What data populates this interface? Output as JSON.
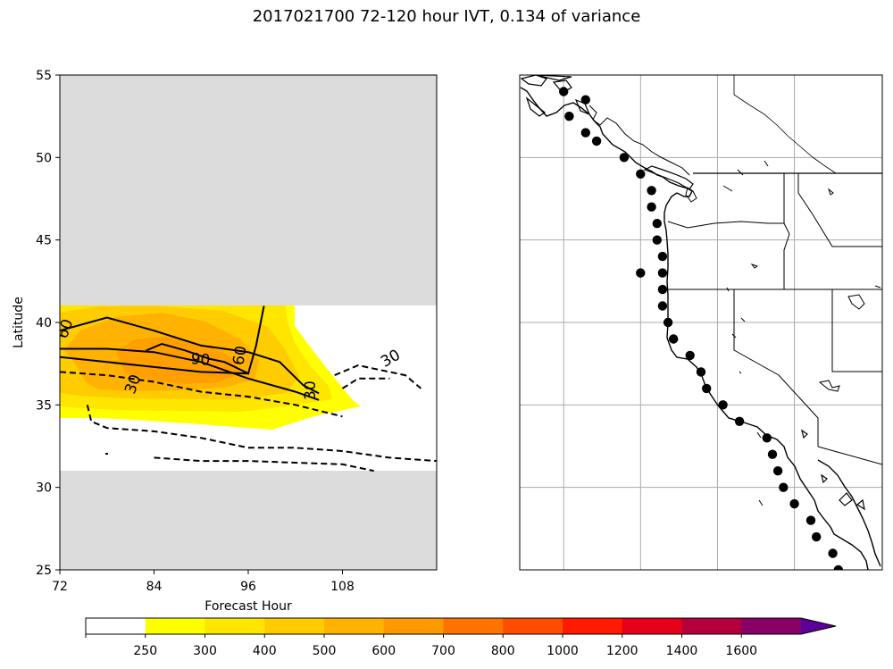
{
  "title": "2017021700 72-120 hour IVT, 0.134 of variance",
  "chart_data": [
    {
      "type": "contour",
      "xlabel": "Forecast Hour",
      "ylabel": "Latitude",
      "xlim": [
        72,
        120
      ],
      "ylim": [
        25,
        55
      ],
      "xticks": [
        72,
        84,
        96,
        108
      ],
      "yticks": [
        25,
        30,
        35,
        40,
        45,
        50,
        55
      ],
      "valid_lat_range": [
        31,
        41
      ],
      "masked_color": "#dcdcdc",
      "filled_levels": [
        250,
        300,
        400,
        500,
        600
      ],
      "contour_labels": [
        "60",
        "90",
        "60",
        "30",
        "30",
        "30"
      ],
      "contours": [
        {
          "style": "solid",
          "label": "30",
          "points": [
            [
              72,
              38.4
            ],
            [
              78,
              38.4
            ],
            [
              84,
              38.2
            ],
            [
              90,
              37.6
            ],
            [
              96,
              36.6
            ],
            [
              102,
              35.8
            ],
            [
              105,
              35.3
            ]
          ]
        },
        {
          "style": "solid",
          "label": "60",
          "points": [
            [
              72,
              39.5
            ],
            [
              78,
              40.3
            ],
            [
              84,
              39.5
            ],
            [
              90,
              38.6
            ],
            [
              96,
              38.2
            ],
            [
              100,
              37.6
            ],
            [
              103,
              36.2
            ],
            [
              105,
              35.7
            ]
          ]
        },
        {
          "style": "solid",
          "label": "60",
          "points": [
            [
              72,
              37.9
            ],
            [
              78,
              37.6
            ],
            [
              84,
              37.3
            ],
            [
              90,
              37.0
            ],
            [
              96,
              36.9
            ]
          ]
        },
        {
          "style": "solid",
          "label": "90",
          "points": [
            [
              83,
              38.3
            ],
            [
              85,
              38.7
            ],
            [
              88,
              38.3
            ],
            [
              91,
              37.8
            ],
            [
              93,
              37.6
            ],
            [
              96,
              36.9
            ],
            [
              97,
              38.6
            ],
            [
              98,
              41.0
            ]
          ]
        },
        {
          "style": "dashed",
          "label": "30",
          "points": [
            [
              72,
              37.0
            ],
            [
              78,
              36.8
            ],
            [
              84,
              36.4
            ],
            [
              90,
              35.8
            ],
            [
              96,
              35.5
            ],
            [
              102,
              35.0
            ],
            [
              108,
              34.3
            ]
          ]
        },
        {
          "style": "dashed",
          "label": "30",
          "points": [
            [
              75.5,
              35.0
            ],
            [
              76,
              34.0
            ],
            [
              78,
              33.6
            ],
            [
              84,
              33.4
            ],
            [
              90,
              33.0
            ],
            [
              96,
              32.4
            ],
            [
              102,
              32.4
            ],
            [
              108,
              32.2
            ],
            [
              114,
              31.8
            ],
            [
              120,
              31.6
            ]
          ]
        },
        {
          "style": "dashed",
          "label": "30",
          "points": [
            [
              107,
              36.8
            ],
            [
              110,
              37.4
            ],
            [
              116,
              36.8
            ],
            [
              118,
              36.0
            ]
          ]
        },
        {
          "style": "dashed",
          "label": "",
          "points": [
            [
              84,
              31.8
            ],
            [
              90,
              31.6
            ],
            [
              96,
              31.6
            ],
            [
              102,
              31.5
            ],
            [
              108,
              31.4
            ],
            [
              112,
              31.0
            ]
          ]
        },
        {
          "style": "dashed",
          "label": "",
          "points": [
            [
              108,
              36.0
            ],
            [
              110,
              36.6
            ],
            [
              114,
              36.6
            ]
          ]
        }
      ]
    },
    {
      "type": "map",
      "lon_range": [
        -140,
        -107
      ],
      "lat_range": [
        25,
        55
      ],
      "gridlines_lon": [
        -136,
        -129,
        -122,
        -115
      ],
      "gridlines_lat": [
        30,
        35,
        40,
        45,
        50
      ],
      "gridlines": true,
      "points": [
        [
          -136.0,
          54.0
        ],
        [
          -134.0,
          53.5
        ],
        [
          -135.5,
          52.5
        ],
        [
          -134.0,
          51.5
        ],
        [
          -133.0,
          51.0
        ],
        [
          -130.5,
          50.0
        ],
        [
          -129.0,
          49.0
        ],
        [
          -128.0,
          48.0
        ],
        [
          -128.0,
          47.0
        ],
        [
          -127.5,
          46.0
        ],
        [
          -127.5,
          45.0
        ],
        [
          -127.0,
          44.0
        ],
        [
          -127.0,
          43.0
        ],
        [
          -129.0,
          43.0
        ],
        [
          -127.0,
          42.0
        ],
        [
          -127.0,
          41.0
        ],
        [
          -126.5,
          40.0
        ],
        [
          -126.0,
          39.0
        ],
        [
          -124.5,
          38.0
        ],
        [
          -123.5,
          37.0
        ],
        [
          -123.0,
          36.0
        ],
        [
          -121.5,
          35.0
        ],
        [
          -120.0,
          34.0
        ],
        [
          -117.5,
          33.0
        ],
        [
          -117.0,
          32.0
        ],
        [
          -116.5,
          31.0
        ],
        [
          -116.0,
          30.0
        ],
        [
          -115.0,
          29.0
        ],
        [
          -113.5,
          28.0
        ],
        [
          -113.0,
          27.0
        ],
        [
          -111.5,
          26.0
        ],
        [
          -111.0,
          25.0
        ]
      ]
    }
  ],
  "colorbar": {
    "ticks": [
      "250",
      "300",
      "400",
      "500",
      "600",
      "700",
      "800",
      "1000",
      "1200",
      "1400",
      "1600"
    ],
    "colors": [
      "#ffffff",
      "#ffff00",
      "#ffe600",
      "#ffcc00",
      "#ffb300",
      "#ff9900",
      "#ff7300",
      "#ff4d00",
      "#ff1a00",
      "#e6001a",
      "#b3003d",
      "#880066",
      "#5c0099"
    ]
  }
}
